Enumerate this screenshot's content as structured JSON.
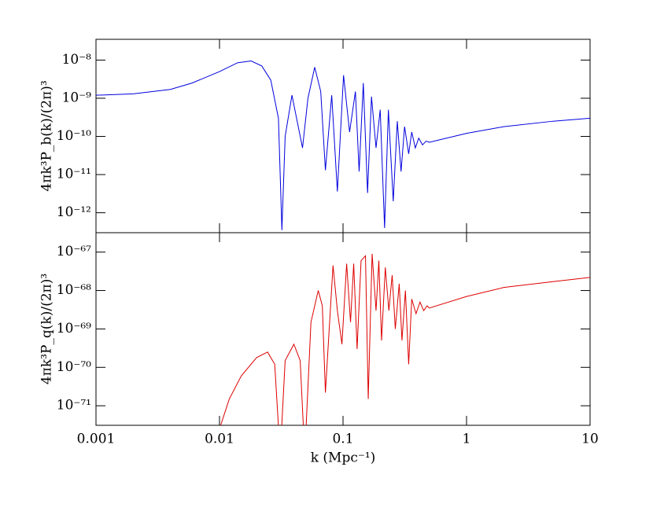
{
  "chart_data": [
    {
      "type": "line",
      "ylabel": "4πk³P_b(k)/(2π)³",
      "xscale": "log",
      "yscale": "log",
      "xlim": [
        0.001,
        10
      ],
      "ylim": [
        3.5e-08,
        3e-13
      ],
      "yticks": [
        {
          "value": 1e-08,
          "label": "10⁻⁸"
        },
        {
          "value": 1e-09,
          "label": "10⁻⁹"
        },
        {
          "value": 1e-10,
          "label": "10⁻¹⁰"
        },
        {
          "value": 1e-11,
          "label": "10⁻¹¹"
        },
        {
          "value": 1e-12,
          "label": "10⁻¹²"
        }
      ],
      "series": [
        {
          "color": "#0000dd",
          "x": [
            0.001,
            0.002,
            0.004,
            0.006,
            0.01,
            0.014,
            0.018,
            0.022,
            0.026,
            0.03,
            0.032,
            0.034,
            0.0386,
            0.047,
            0.052,
            0.059,
            0.066,
            0.072,
            0.081,
            0.09,
            0.101,
            0.113,
            0.126,
            0.135,
            0.146,
            0.158,
            0.17,
            0.185,
            0.2,
            0.217,
            0.233,
            0.255,
            0.275,
            0.295,
            0.315,
            0.34,
            0.36,
            0.385,
            0.41,
            0.44,
            0.47,
            0.5,
            1,
            2,
            5,
            10
          ],
          "values": [
            1.2e-09,
            1.3e-09,
            1.7e-09,
            2.5e-09,
            5e-09,
            8.5e-09,
            9.5e-09,
            7e-09,
            3e-09,
            3e-10,
            3.5e-13,
            1e-10,
            1.2e-09,
            5e-11,
            1e-09,
            6.5e-09,
            1.5e-09,
            1.3e-11,
            1.2e-09,
            3.6e-12,
            4e-09,
            1.3e-10,
            1.5e-09,
            1.2e-11,
            2.5e-09,
            3.3e-12,
            1.1e-09,
            5e-11,
            5e-10,
            4e-13,
            5e-10,
            2e-12,
            2.5e-10,
            1.2e-11,
            1.8e-10,
            3.5e-11,
            1.3e-10,
            5e-11,
            9e-11,
            6e-11,
            7.5e-11,
            7e-11,
            1.2e-10,
            1.8e-10,
            2.5e-10,
            3e-10
          ]
        }
      ]
    },
    {
      "type": "line",
      "ylabel": "4πk³P_q(k)/(2π)³",
      "xlabel": "k (Mpc⁻¹)",
      "xscale": "log",
      "yscale": "log",
      "xlim": [
        0.001,
        10
      ],
      "ylim": [
        3.2e-67,
        3.1e-72
      ],
      "xticks": [
        0.001,
        0.01,
        0.1,
        1,
        10
      ],
      "yticks": [
        {
          "value": 1e-67,
          "label": "10⁻⁶⁷"
        },
        {
          "value": 1e-68,
          "label": "10⁻⁶⁸"
        },
        {
          "value": 1e-69,
          "label": "10⁻⁶⁹"
        },
        {
          "value": 1e-70,
          "label": "10⁻⁷⁰"
        },
        {
          "value": 1e-71,
          "label": "10⁻⁷¹"
        }
      ],
      "series": [
        {
          "color": "#dd0000",
          "x": [
            0.01,
            0.012,
            0.015,
            0.02,
            0.0245,
            0.028,
            0.031,
            0.034,
            0.04,
            0.045,
            0.049,
            0.055,
            0.063,
            0.068,
            0.072,
            0.083,
            0.09,
            0.098,
            0.107,
            0.115,
            0.122,
            0.13,
            0.14,
            0.152,
            0.16,
            0.172,
            0.185,
            0.195,
            0.205,
            0.22,
            0.235,
            0.25,
            0.265,
            0.285,
            0.3,
            0.32,
            0.34,
            0.36,
            0.39,
            0.42,
            0.45,
            0.48,
            0.5,
            1,
            2,
            5,
            10
          ],
          "values": [
            2.5e-72,
            1.5e-71,
            6e-71,
            1.8e-70,
            2.5e-70,
            1.2e-70,
            5e-73,
            1.5e-70,
            4e-70,
            1.5e-70,
            5e-73,
            1.5e-69,
            1e-68,
            4e-69,
            2.2e-71,
            4.5e-68,
            3e-69,
            4e-70,
            5e-68,
            1.5e-69,
            5e-68,
            3e-70,
            6e-68,
            8e-68,
            1.5e-71,
            9e-68,
            3e-69,
            6e-68,
            5e-70,
            4e-68,
            3e-69,
            2.5e-68,
            1e-69,
            1.5e-68,
            5e-70,
            1e-68,
            1.2e-70,
            6e-69,
            2.5e-69,
            5e-69,
            3e-69,
            4e-69,
            3.5e-69,
            7e-69,
            1.2e-68,
            1.7e-68,
            2.2e-68
          ]
        }
      ]
    }
  ]
}
